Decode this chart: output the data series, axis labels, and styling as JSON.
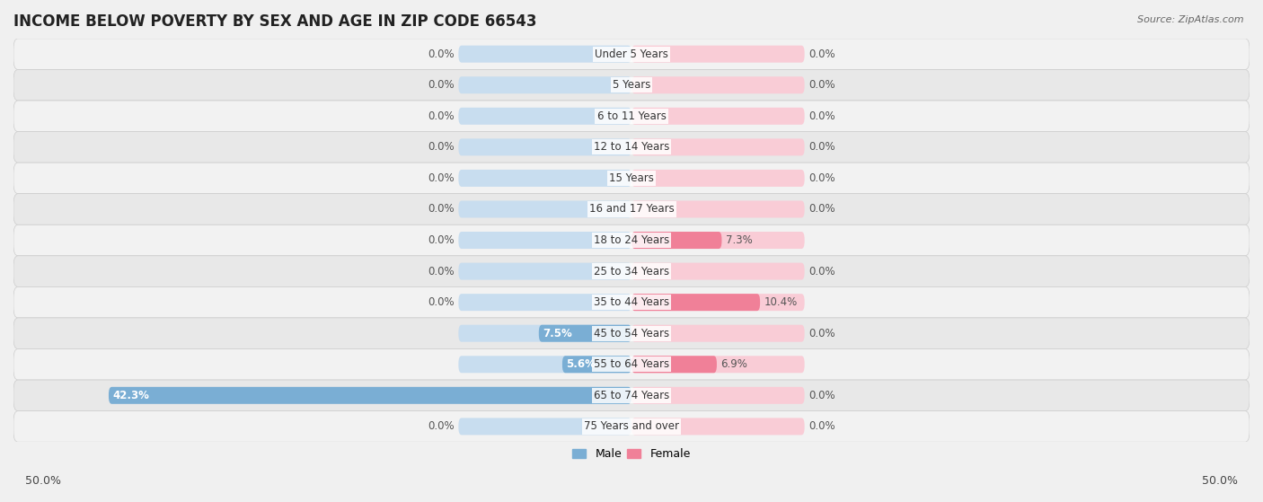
{
  "title": "INCOME BELOW POVERTY BY SEX AND AGE IN ZIP CODE 66543",
  "source": "Source: ZipAtlas.com",
  "categories": [
    "Under 5 Years",
    "5 Years",
    "6 to 11 Years",
    "12 to 14 Years",
    "15 Years",
    "16 and 17 Years",
    "18 to 24 Years",
    "25 to 34 Years",
    "35 to 44 Years",
    "45 to 54 Years",
    "55 to 64 Years",
    "65 to 74 Years",
    "75 Years and over"
  ],
  "male_values": [
    0.0,
    0.0,
    0.0,
    0.0,
    0.0,
    0.0,
    0.0,
    0.0,
    0.0,
    7.5,
    5.6,
    42.3,
    0.0
  ],
  "female_values": [
    0.0,
    0.0,
    0.0,
    0.0,
    0.0,
    0.0,
    7.3,
    0.0,
    10.4,
    0.0,
    6.9,
    0.0,
    0.0
  ],
  "male_color": "#7aaed4",
  "female_color": "#f08098",
  "male_bg_color": "#c8ddef",
  "female_bg_color": "#f9ccd6",
  "row_colors": [
    "#f2f2f2",
    "#e8e8e8"
  ],
  "xlim": 50.0,
  "legend_male": "Male",
  "legend_female": "Female",
  "bg_color": "#f0f0f0",
  "title_fontsize": 12,
  "label_fontsize": 8.5,
  "bar_height": 0.55,
  "min_bar_display": 2.0
}
